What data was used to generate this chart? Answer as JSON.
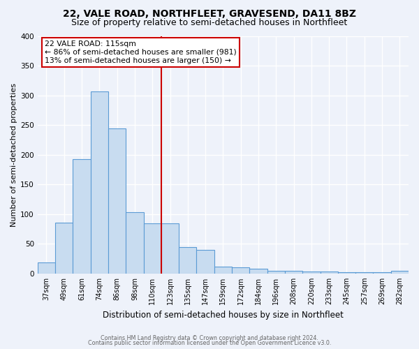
{
  "title1": "22, VALE ROAD, NORTHFLEET, GRAVESEND, DA11 8BZ",
  "title2": "Size of property relative to semi-detached houses in Northfleet",
  "xlabel": "Distribution of semi-detached houses by size in Northfleet",
  "ylabel": "Number of semi-detached properties",
  "categories": [
    "37sqm",
    "49sqm",
    "61sqm",
    "74sqm",
    "86sqm",
    "98sqm",
    "110sqm",
    "123sqm",
    "135sqm",
    "147sqm",
    "159sqm",
    "172sqm",
    "184sqm",
    "196sqm",
    "208sqm",
    "220sqm",
    "233sqm",
    "245sqm",
    "257sqm",
    "269sqm",
    "282sqm"
  ],
  "values": [
    18,
    85,
    193,
    307,
    244,
    103,
    84,
    84,
    45,
    40,
    12,
    10,
    8,
    5,
    4,
    3,
    3,
    2,
    2,
    2,
    5
  ],
  "bar_color": "#c8dcf0",
  "bar_edge_color": "#5b9bd5",
  "vline_index": 7,
  "vline_color": "#cc0000",
  "annotation_title": "22 VALE ROAD: 115sqm",
  "annotation_line1": "← 86% of semi-detached houses are smaller (981)",
  "annotation_line2": "13% of semi-detached houses are larger (150) →",
  "ylim": [
    0,
    400
  ],
  "yticks": [
    0,
    50,
    100,
    150,
    200,
    250,
    300,
    350,
    400
  ],
  "footer1": "Contains HM Land Registry data © Crown copyright and database right 2024.",
  "footer2": "Contains public sector information licensed under the Open Government Licence v3.0.",
  "bg_color": "#eef2fa",
  "grid_color": "#ffffff",
  "title_fontsize": 10,
  "subtitle_fontsize": 9,
  "tick_fontsize": 7,
  "ylabel_fontsize": 8,
  "xlabel_fontsize": 8.5
}
